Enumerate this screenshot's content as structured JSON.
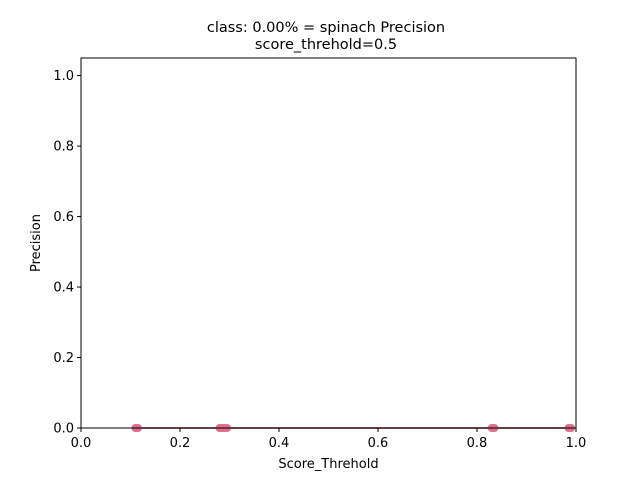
{
  "chart_data": {
    "type": "scatter",
    "title_line1": "class: 0.00% = spinach Precision",
    "title_line2": "score_threhold=0.5",
    "xlabel": "Score_Threhold",
    "ylabel": "Precision",
    "xlim": [
      0.0,
      1.0
    ],
    "ylim": [
      0.0,
      1.05
    ],
    "xticks": [
      "0.0",
      "0.2",
      "0.4",
      "0.6",
      "0.8",
      "1.0"
    ],
    "yticks": [
      "0.0",
      "0.2",
      "0.4",
      "0.6",
      "0.8",
      "1.0"
    ],
    "grid": false,
    "line_color": "#8b0000",
    "marker_color": "#e06c8c",
    "series": [
      {
        "x": [
          0.11,
          0.115,
          0.28,
          0.285,
          0.29,
          0.295,
          0.83,
          0.835,
          0.985,
          0.99
        ],
        "y": [
          0,
          0,
          0,
          0,
          0,
          0,
          0,
          0,
          0,
          0
        ]
      }
    ]
  }
}
